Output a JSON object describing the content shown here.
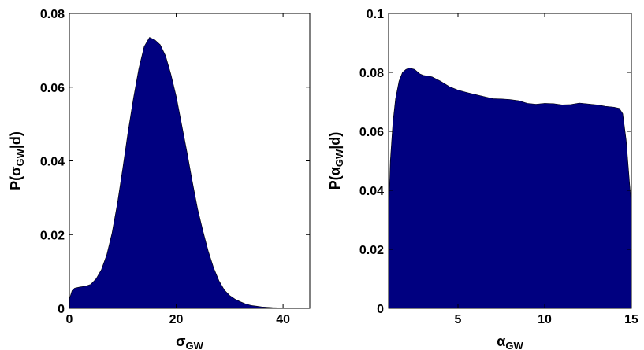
{
  "chart_data": [
    {
      "type": "area",
      "xlabel_symbol": "σ",
      "xlabel_sub": "GW",
      "ylabel_prefix": "P(",
      "ylabel_symbol": "σ",
      "ylabel_sub": "GW",
      "ylabel_suffix": "|d)",
      "xlim": [
        0,
        45
      ],
      "ylim": [
        0,
        0.08
      ],
      "xticks": [
        0,
        20,
        40
      ],
      "xtick_labels": [
        "0",
        "20",
        "40"
      ],
      "yticks": [
        0,
        0.02,
        0.04,
        0.06,
        0.08
      ],
      "ytick_labels": [
        "0",
        "0.02",
        "0.04",
        "0.06",
        "0.08"
      ],
      "fill_color": "#000080",
      "x": [
        0,
        0.5,
        1,
        2,
        3,
        4,
        5,
        6,
        7,
        8,
        9,
        10,
        11,
        12,
        13,
        14,
        15,
        16,
        17,
        18,
        19,
        20,
        21,
        22,
        23,
        24,
        25,
        26,
        27,
        28,
        29,
        30,
        31,
        32,
        33,
        34,
        35,
        36,
        38,
        40,
        42,
        44,
        45
      ],
      "y": [
        0.0025,
        0.0048,
        0.0055,
        0.0058,
        0.006,
        0.0065,
        0.008,
        0.0105,
        0.0145,
        0.0205,
        0.0285,
        0.038,
        0.048,
        0.057,
        0.065,
        0.071,
        0.0735,
        0.0728,
        0.0715,
        0.0685,
        0.0635,
        0.0575,
        0.05,
        0.0425,
        0.0345,
        0.027,
        0.021,
        0.0155,
        0.011,
        0.0075,
        0.005,
        0.0035,
        0.0025,
        0.0018,
        0.0012,
        0.0008,
        0.0006,
        0.0004,
        0.0002,
        0.0001,
        5e-05,
        2e-05,
        0
      ]
    },
    {
      "type": "area",
      "xlabel_symbol": "α",
      "xlabel_sub": "GW",
      "ylabel_prefix": "P(",
      "ylabel_symbol": "α",
      "ylabel_sub": "GW",
      "ylabel_suffix": "|d)",
      "xlim": [
        1,
        15
      ],
      "ylim": [
        0,
        0.1
      ],
      "xticks": [
        5,
        10,
        15
      ],
      "xtick_labels": [
        "5",
        "10",
        "15"
      ],
      "yticks": [
        0,
        0.02,
        0.04,
        0.06,
        0.08,
        0.1
      ],
      "ytick_labels": [
        "0",
        "0.02",
        "0.04",
        "0.06",
        "0.08",
        "0.1"
      ],
      "fill_color": "#000080",
      "x": [
        1,
        1.1,
        1.25,
        1.4,
        1.6,
        1.8,
        2,
        2.2,
        2.5,
        2.8,
        3,
        3.5,
        4,
        4.5,
        5,
        5.5,
        6,
        6.5,
        7,
        7.5,
        8,
        8.5,
        9,
        9.5,
        10,
        10.5,
        11,
        11.5,
        12,
        12.5,
        13,
        13.5,
        14,
        14.3,
        14.5,
        14.7,
        14.9,
        15
      ],
      "y": [
        0.031,
        0.05,
        0.063,
        0.071,
        0.077,
        0.08,
        0.081,
        0.0815,
        0.081,
        0.0795,
        0.079,
        0.0785,
        0.077,
        0.0752,
        0.074,
        0.0732,
        0.0725,
        0.0718,
        0.0711,
        0.071,
        0.0708,
        0.0704,
        0.0695,
        0.0692,
        0.0695,
        0.0694,
        0.069,
        0.0691,
        0.0696,
        0.0693,
        0.069,
        0.0685,
        0.0682,
        0.0678,
        0.066,
        0.057,
        0.042,
        0.035
      ]
    }
  ]
}
